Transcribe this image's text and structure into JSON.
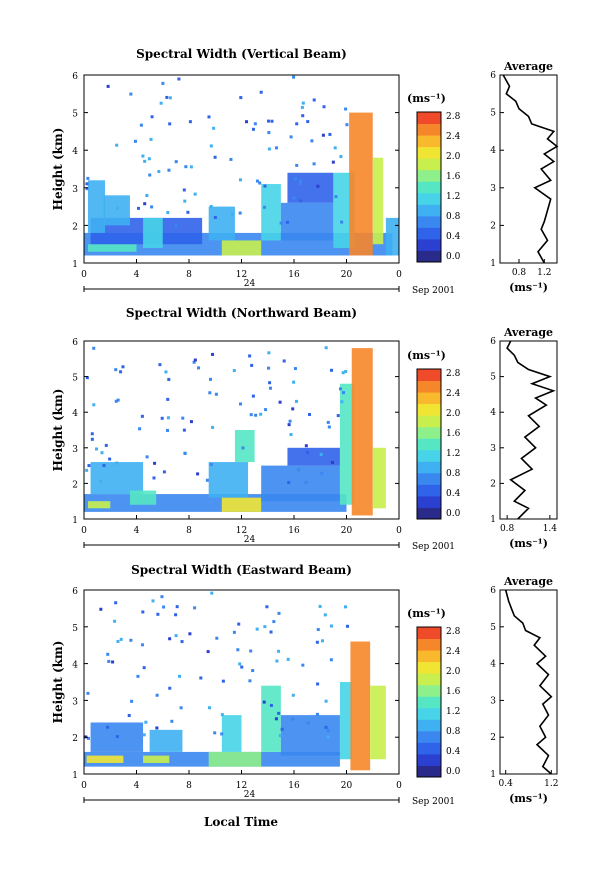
{
  "figure": {
    "xlabel": "Local Time",
    "date_label": "Sep 2001",
    "day_label": "24",
    "width_unit": "(ms⁻¹)",
    "avg_title": "Average",
    "ylabel": "Height (km)"
  },
  "chart_data": [
    {
      "type": "heatmap",
      "title": "Spectral Width (Vertical Beam)",
      "xlabel": "Local Time",
      "ylabel": "Height (km)",
      "xticks": [
        "0",
        "4",
        "8",
        "12",
        "16",
        "20",
        "0"
      ],
      "xlim": [
        0,
        24
      ],
      "yticks": [
        "1",
        "2",
        "3",
        "4",
        "5",
        "6"
      ],
      "ylim": [
        1,
        6
      ],
      "colorbar": {
        "label": "(ms⁻¹)",
        "ticks": [
          "0.0",
          "0.4",
          "0.8",
          "1.2",
          "1.6",
          "2.0",
          "2.4",
          "2.8"
        ],
        "range": [
          0,
          3.0
        ]
      },
      "average_profile": {
        "title": "Average",
        "xlabel": "(ms⁻¹)",
        "xticks": [
          "0.8",
          "1.2"
        ],
        "xlim": [
          0.5,
          1.4
        ],
        "heights": [
          1.0,
          1.3,
          1.6,
          1.9,
          2.1,
          2.4,
          2.7,
          3.0,
          3.2,
          3.5,
          3.7,
          3.9,
          4.1,
          4.3,
          4.5,
          4.7,
          4.9,
          5.1,
          5.3,
          5.5,
          5.7,
          6.0
        ],
        "values": [
          1.2,
          1.1,
          1.25,
          1.15,
          1.2,
          1.25,
          1.3,
          1.05,
          1.3,
          1.15,
          1.35,
          1.2,
          1.4,
          1.25,
          1.35,
          1.0,
          0.95,
          0.8,
          0.75,
          0.6,
          0.65,
          0.55
        ]
      },
      "bands": [
        {
          "x0": 0,
          "x1": 23.5,
          "y0": 1.2,
          "y1": 1.8,
          "level": 0.7
        },
        {
          "x0": 0.3,
          "x1": 4,
          "y0": 1.3,
          "y1": 1.5,
          "level": 1.6
        },
        {
          "x0": 0.5,
          "x1": 9,
          "y0": 1.5,
          "y1": 2.2,
          "level": 0.6
        },
        {
          "x0": 0.3,
          "x1": 1.6,
          "y0": 1.8,
          "y1": 3.2,
          "level": 0.9
        },
        {
          "x0": 1.5,
          "x1": 3.5,
          "y0": 2.0,
          "y1": 2.8,
          "level": 1.1
        },
        {
          "x0": 4.5,
          "x1": 6.0,
          "y0": 1.4,
          "y1": 2.2,
          "level": 1.3
        },
        {
          "x0": 9.5,
          "x1": 11.5,
          "y0": 1.6,
          "y1": 2.5,
          "level": 1.0
        },
        {
          "x0": 10.5,
          "x1": 13.5,
          "y0": 1.2,
          "y1": 1.6,
          "level": 1.9
        },
        {
          "x0": 13.5,
          "x1": 15.0,
          "y0": 1.6,
          "y1": 3.1,
          "level": 1.2
        },
        {
          "x0": 15.0,
          "x1": 19.0,
          "y0": 1.6,
          "y1": 2.6,
          "level": 0.8
        },
        {
          "x0": 15.5,
          "x1": 19.0,
          "y0": 2.6,
          "y1": 3.4,
          "level": 0.5
        },
        {
          "x0": 19.0,
          "x1": 20.6,
          "y0": 1.4,
          "y1": 3.4,
          "level": 1.3
        },
        {
          "x0": 20.2,
          "x1": 22.0,
          "y0": 1.2,
          "y1": 5.0,
          "level": 2.8
        },
        {
          "x0": 22.0,
          "x1": 22.8,
          "y0": 1.5,
          "y1": 3.8,
          "level": 2.0
        },
        {
          "x0": 23.0,
          "x1": 24.0,
          "y0": 1.2,
          "y1": 2.2,
          "level": 0.9
        }
      ]
    },
    {
      "type": "heatmap",
      "title": "Spectral Width (Northward Beam)",
      "xlabel": "Local Time",
      "ylabel": "Height (km)",
      "xticks": [
        "0",
        "4",
        "8",
        "12",
        "16",
        "20",
        "0"
      ],
      "xlim": [
        0,
        24
      ],
      "yticks": [
        "1",
        "2",
        "3",
        "4",
        "5",
        "6"
      ],
      "ylim": [
        1,
        6
      ],
      "colorbar": {
        "label": "(ms⁻¹)",
        "ticks": [
          "0.0",
          "0.4",
          "0.8",
          "1.2",
          "1.6",
          "2.0",
          "2.4",
          "2.8"
        ],
        "range": [
          0,
          3.0
        ]
      },
      "average_profile": {
        "title": "Average",
        "xlabel": "(ms⁻¹)",
        "xticks": [
          "0.8",
          "1.4"
        ],
        "xlim": [
          0.7,
          1.5
        ],
        "heights": [
          1.0,
          1.3,
          1.5,
          1.8,
          2.1,
          2.4,
          2.7,
          3.0,
          3.3,
          3.6,
          3.9,
          4.2,
          4.4,
          4.6,
          4.8,
          5.0,
          5.2,
          5.4,
          5.6,
          5.8,
          6.0
        ],
        "values": [
          0.95,
          1.1,
          0.9,
          1.05,
          0.85,
          1.15,
          1.0,
          1.2,
          1.05,
          1.25,
          1.1,
          1.35,
          1.2,
          1.45,
          1.15,
          1.4,
          1.1,
          0.95,
          0.9,
          0.8,
          0.85
        ]
      },
      "bands": [
        {
          "x0": 0,
          "x1": 20,
          "y0": 1.2,
          "y1": 1.7,
          "level": 0.8
        },
        {
          "x0": 0.3,
          "x1": 2.0,
          "y0": 1.3,
          "y1": 1.5,
          "level": 2.0
        },
        {
          "x0": 0.5,
          "x1": 4.5,
          "y0": 1.7,
          "y1": 2.6,
          "level": 0.9
        },
        {
          "x0": 3.5,
          "x1": 5.5,
          "y0": 1.4,
          "y1": 1.8,
          "level": 1.6
        },
        {
          "x0": 9.5,
          "x1": 12.5,
          "y0": 1.6,
          "y1": 2.6,
          "level": 1.1
        },
        {
          "x0": 10.5,
          "x1": 13.5,
          "y0": 1.2,
          "y1": 1.6,
          "level": 2.2
        },
        {
          "x0": 11.5,
          "x1": 13.0,
          "y0": 2.6,
          "y1": 3.5,
          "level": 1.5
        },
        {
          "x0": 13.5,
          "x1": 19.5,
          "y0": 1.5,
          "y1": 2.5,
          "level": 0.7
        },
        {
          "x0": 15.5,
          "x1": 19.5,
          "y0": 2.5,
          "y1": 3.0,
          "level": 0.5
        },
        {
          "x0": 19.5,
          "x1": 20.6,
          "y0": 1.4,
          "y1": 4.8,
          "level": 1.4
        },
        {
          "x0": 20.4,
          "x1": 22.0,
          "y0": 1.1,
          "y1": 5.8,
          "level": 2.8
        },
        {
          "x0": 22.0,
          "x1": 23.0,
          "y0": 1.3,
          "y1": 3.0,
          "level": 1.9
        }
      ]
    },
    {
      "type": "heatmap",
      "title": "Spectral Width (Eastward Beam)",
      "xlabel": "Local Time",
      "ylabel": "Height (km)",
      "xticks": [
        "0",
        "4",
        "8",
        "12",
        "16",
        "20",
        "0"
      ],
      "xlim": [
        0,
        24
      ],
      "yticks": [
        "1",
        "2",
        "3",
        "4",
        "5",
        "6"
      ],
      "ylim": [
        1,
        6
      ],
      "colorbar": {
        "label": "(ms⁻¹)",
        "ticks": [
          "0.0",
          "0.4",
          "0.8",
          "1.2",
          "1.6",
          "2.0",
          "2.4",
          "2.8"
        ],
        "range": [
          0,
          3.0
        ]
      },
      "average_profile": {
        "title": "Average",
        "xlabel": "(ms⁻¹)",
        "xticks": [
          "0.4",
          "1.2"
        ],
        "xlim": [
          0.3,
          1.3
        ],
        "heights": [
          1.0,
          1.2,
          1.5,
          1.8,
          2.0,
          2.3,
          2.6,
          2.9,
          3.1,
          3.4,
          3.7,
          4.0,
          4.2,
          4.5,
          4.7,
          4.9,
          5.1,
          5.3,
          5.5,
          5.7,
          6.0
        ],
        "values": [
          1.2,
          1.05,
          1.15,
          0.95,
          1.1,
          1.0,
          1.15,
          1.05,
          1.2,
          1.0,
          1.15,
          0.95,
          1.1,
          0.9,
          1.0,
          0.75,
          0.7,
          0.55,
          0.5,
          0.45,
          0.4
        ]
      },
      "bands": [
        {
          "x0": 0,
          "x1": 19.5,
          "y0": 1.2,
          "y1": 1.6,
          "level": 0.8
        },
        {
          "x0": 0.2,
          "x1": 3.0,
          "y0": 1.3,
          "y1": 1.5,
          "level": 2.2
        },
        {
          "x0": 0.5,
          "x1": 4.5,
          "y0": 1.6,
          "y1": 2.4,
          "level": 0.7
        },
        {
          "x0": 4.5,
          "x1": 6.5,
          "y0": 1.3,
          "y1": 1.5,
          "level": 2.0
        },
        {
          "x0": 5.0,
          "x1": 7.5,
          "y0": 1.6,
          "y1": 2.2,
          "level": 1.1
        },
        {
          "x0": 9.5,
          "x1": 13.5,
          "y0": 1.2,
          "y1": 1.6,
          "level": 1.8
        },
        {
          "x0": 10.5,
          "x1": 12.0,
          "y0": 1.6,
          "y1": 2.6,
          "level": 1.2
        },
        {
          "x0": 13.5,
          "x1": 15.0,
          "y0": 1.6,
          "y1": 3.4,
          "level": 1.5
        },
        {
          "x0": 15.0,
          "x1": 19.5,
          "y0": 1.5,
          "y1": 2.6,
          "level": 0.8
        },
        {
          "x0": 19.5,
          "x1": 20.4,
          "y0": 1.4,
          "y1": 3.5,
          "level": 1.3
        },
        {
          "x0": 20.3,
          "x1": 21.8,
          "y0": 1.1,
          "y1": 4.6,
          "level": 2.8
        },
        {
          "x0": 21.8,
          "x1": 23.0,
          "y0": 1.4,
          "y1": 3.4,
          "level": 2.0
        }
      ]
    }
  ]
}
